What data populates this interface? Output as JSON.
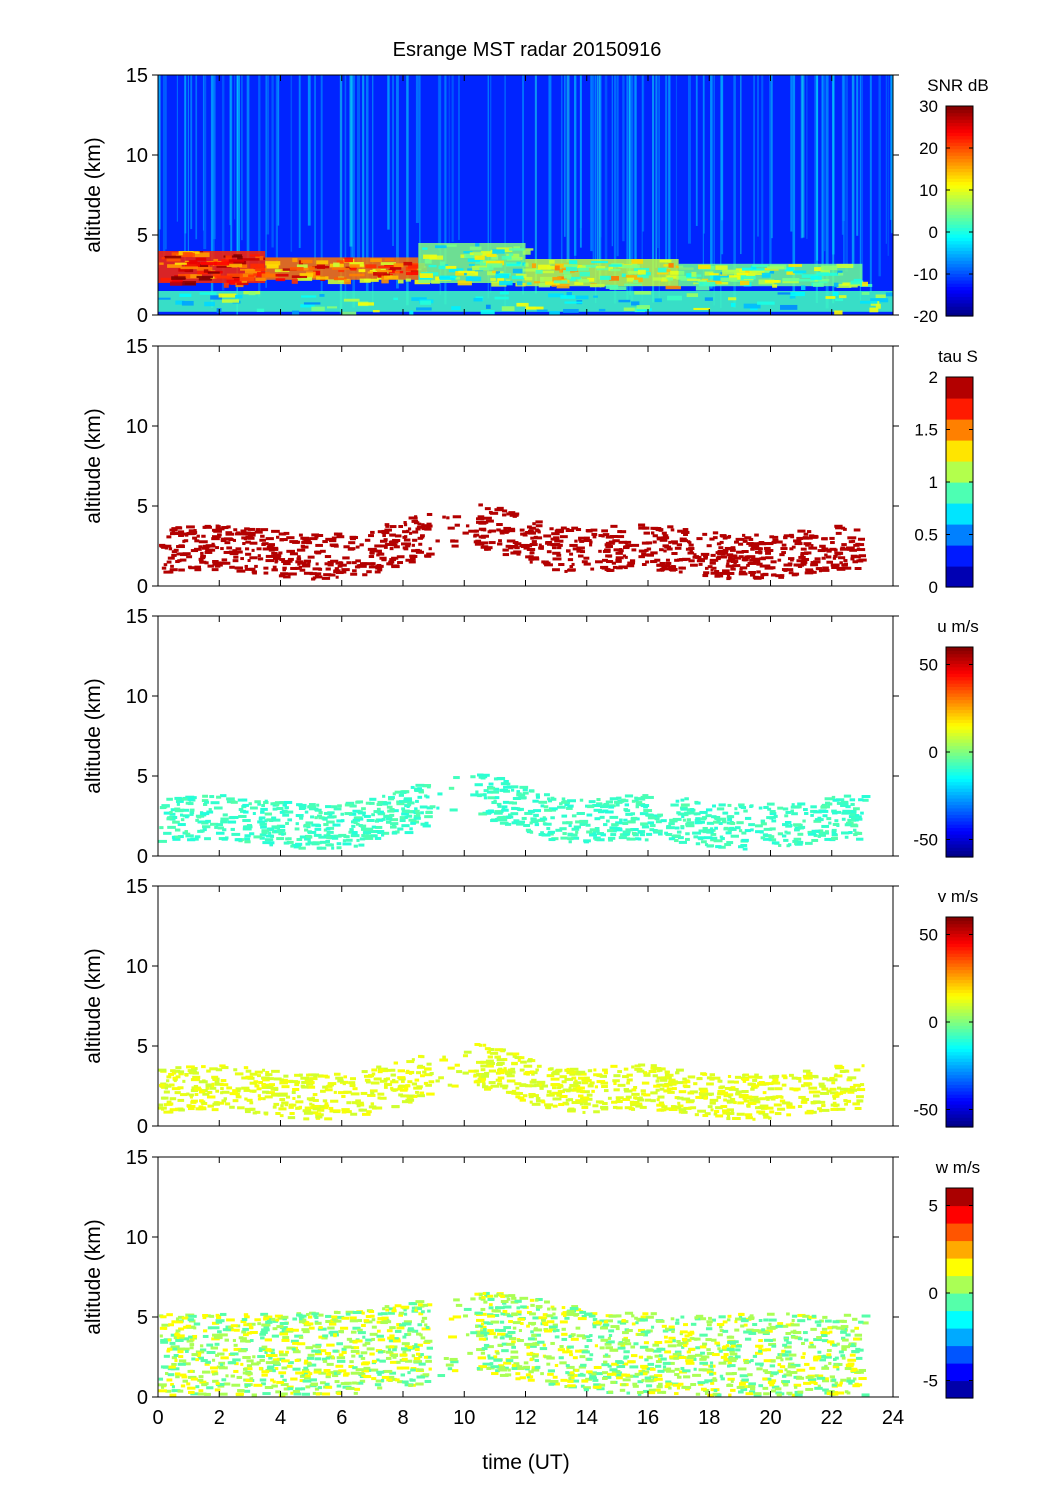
{
  "title": "Esrange MST radar 20150916",
  "chart_data": {
    "type": "heatmap",
    "title": "Esrange MST radar 20150916",
    "xlabel": "time (UT)",
    "xlim": [
      0,
      24
    ],
    "x_ticks": [
      "0",
      "2",
      "4",
      "6",
      "8",
      "10",
      "12",
      "14",
      "16",
      "18",
      "20",
      "22",
      "24"
    ],
    "grid": false,
    "panels": [
      {
        "key": "snr",
        "ylabel": "altitude (km)",
        "ylim": [
          0,
          15
        ],
        "y_ticks": [
          "0",
          "5",
          "10",
          "15"
        ],
        "colorbar_label": "SNR dB",
        "clim": [
          -20,
          30
        ],
        "colorbar_ticks": [
          "-20",
          "-10",
          "0",
          "10",
          "20",
          "30"
        ],
        "colormap": "jet",
        "discrete_levels": 0,
        "fill": "full",
        "layers": [
          {
            "t": [
              0,
              3.5
            ],
            "z": [
              2.0,
              4.0
            ],
            "value": 22
          },
          {
            "t": [
              3.5,
              8.5
            ],
            "z": [
              2.2,
              3.6
            ],
            "value": 18
          },
          {
            "t": [
              8.5,
              12
            ],
            "z": [
              2.0,
              4.5
            ],
            "value": 5
          },
          {
            "t": [
              12,
              17
            ],
            "z": [
              1.8,
              3.5
            ],
            "value": 8
          },
          {
            "t": [
              17,
              23
            ],
            "z": [
              1.8,
              3.2
            ],
            "value": 4
          },
          {
            "t": [
              0,
              24
            ],
            "z": [
              0.2,
              1.5
            ],
            "value": 2
          }
        ]
      },
      {
        "key": "tau",
        "ylabel": "altitude (km)",
        "ylim": [
          0,
          15
        ],
        "y_ticks": [
          "0",
          "5",
          "10",
          "15"
        ],
        "colorbar_label": "tau S",
        "clim": [
          0,
          2
        ],
        "colorbar_ticks": [
          "0",
          "0.5",
          "1",
          "1.5",
          "2"
        ],
        "colormap": "jet",
        "discrete_levels": 10,
        "fill": "sparse",
        "value": 2.0
      },
      {
        "key": "u",
        "ylabel": "altitude (km)",
        "ylim": [
          0,
          15
        ],
        "y_ticks": [
          "0",
          "5",
          "10",
          "15"
        ],
        "colorbar_label": "u m/s",
        "clim": [
          -60,
          60
        ],
        "colorbar_ticks": [
          "-50",
          "0",
          "50"
        ],
        "colormap": "jet",
        "discrete_levels": 0,
        "fill": "sparse",
        "value": -8
      },
      {
        "key": "v",
        "ylabel": "altitude (km)",
        "ylim": [
          0,
          15
        ],
        "y_ticks": [
          "0",
          "5",
          "10",
          "15"
        ],
        "colorbar_label": "v m/s",
        "clim": [
          -60,
          60
        ],
        "colorbar_ticks": [
          "-50",
          "0",
          "50"
        ],
        "colormap": "jet",
        "discrete_levels": 0,
        "fill": "sparse",
        "value": 12
      },
      {
        "key": "w",
        "ylabel": "altitude (km)",
        "ylim": [
          0,
          15
        ],
        "y_ticks": [
          "0",
          "5",
          "10",
          "15"
        ],
        "colorbar_label": "w m/s",
        "clim": [
          -6,
          6
        ],
        "colorbar_ticks": [
          "-5",
          "0",
          "5"
        ],
        "colormap": "jet",
        "discrete_levels": 12,
        "fill": "wide",
        "value": 0.5
      }
    ]
  }
}
